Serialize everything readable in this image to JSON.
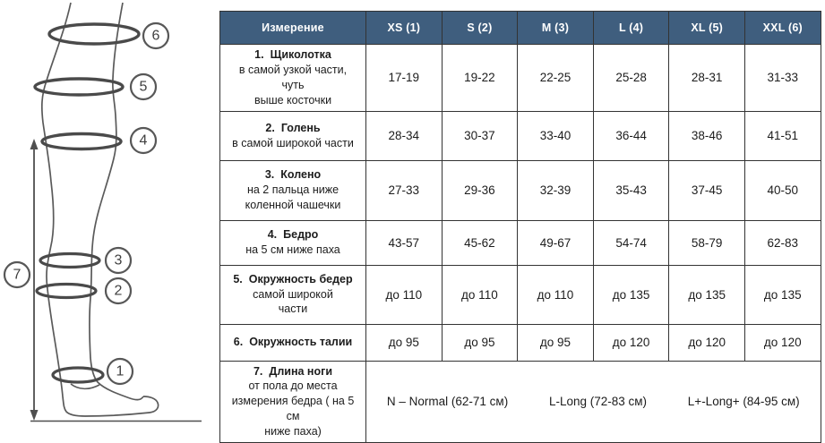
{
  "colors": {
    "header_bg": "#3f5e7e",
    "header_text": "#ffffff",
    "table_border": "#333333",
    "body_text": "#1c1c1c",
    "diagram_stroke": "#5a5a5a"
  },
  "diagram": {
    "markers": [
      {
        "label": "1"
      },
      {
        "label": "2"
      },
      {
        "label": "3"
      },
      {
        "label": "4"
      },
      {
        "label": "5"
      },
      {
        "label": "6"
      },
      {
        "label": "7"
      }
    ]
  },
  "table": {
    "header": [
      "Измерение",
      "XS (1)",
      "S (2)",
      "M (3)",
      "L (4)",
      "XL (5)",
      "XXL (6)"
    ],
    "rows": [
      {
        "num": "1.",
        "title": "Щиколотка",
        "subtitle": "в самой узкой части, чуть\nвыше косточки",
        "values": [
          "17-19",
          "19-22",
          "22-25",
          "25-28",
          "28-31",
          "31-33"
        ]
      },
      {
        "num": "2.",
        "title": "Голень",
        "subtitle": "в самой широкой части",
        "values": [
          "28-34",
          "30-37",
          "33-40",
          "36-44",
          "38-46",
          "41-51"
        ]
      },
      {
        "num": "3.",
        "title": "Колено",
        "subtitle": "на 2 пальца ниже\nколенной чашечки",
        "values": [
          "27-33",
          "29-36",
          "32-39",
          "35-43",
          "37-45",
          "40-50"
        ]
      },
      {
        "num": "4.",
        "title": "Бедро",
        "subtitle": "на 5 см ниже паха",
        "values": [
          "43-57",
          "45-62",
          "49-67",
          "54-74",
          "58-79",
          "62-83"
        ]
      },
      {
        "num": "5.",
        "title": "Окружность бедер",
        "subtitle": "самой широкой\nчасти",
        "values": [
          "до 110",
          "до 110",
          "до 110",
          "до 135",
          "до 135",
          "до 135"
        ]
      },
      {
        "num": "6.",
        "title": "Окружность талии",
        "subtitle": "",
        "values": [
          "до 95",
          "до 95",
          "до 95",
          "до 120",
          "до 120",
          "до 120"
        ]
      },
      {
        "num": "7.",
        "title": "Длина ноги",
        "subtitle": "от пола до места\nизмерения бедра ( на 5 см\nниже паха)",
        "merged_values": [
          "N – Normal (62-71 см)",
          "L-Long (72-83 см)",
          "L+-Long+ (84-95 см)"
        ]
      }
    ]
  }
}
